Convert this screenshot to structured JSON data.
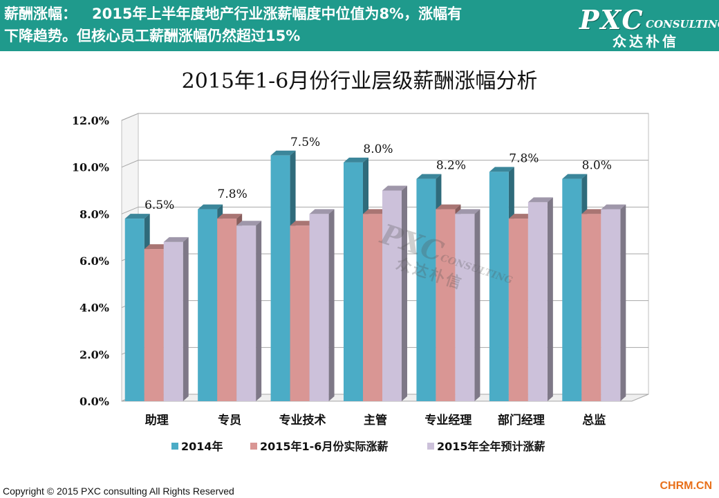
{
  "header": {
    "lead": "薪酬涨幅：",
    "line1": "2015年上半年度地产行业涨薪幅度中位值为8%，涨幅有",
    "line2": "下降趋势。但核心员工薪酬涨幅仍然超过15%"
  },
  "logo": {
    "main": "PXC",
    "sub": "CONSULTING",
    "cn": "众达朴信"
  },
  "watermark": {
    "main": "PXC",
    "sub": "CONSULTING",
    "cn": "众达朴信"
  },
  "colors": {
    "header_bg": "#1f9a8c",
    "series_2014": "#4bacc6",
    "series_actual": "#d99694",
    "series_forecast": "#ccc1da"
  },
  "chart_data": {
    "type": "bar",
    "title": "2015年1-6月份行业层级薪酬涨幅分析",
    "categories": [
      "助理",
      "专员",
      "专业技术",
      "主管",
      "专业经理",
      "部门经理",
      "总监"
    ],
    "series": [
      {
        "name": "2014年",
        "values": [
          7.8,
          8.2,
          10.5,
          10.2,
          9.5,
          9.8,
          9.5
        ]
      },
      {
        "name": "2015年1-6月份实际涨薪",
        "values": [
          6.5,
          7.8,
          7.5,
          8.0,
          8.2,
          7.8,
          8.0
        ]
      },
      {
        "name": "2015年全年预计涨薪",
        "values": [
          6.8,
          7.5,
          8.0,
          9.0,
          8.0,
          8.5,
          8.2
        ]
      }
    ],
    "data_labels": [
      "6.5%",
      "7.8%",
      "7.5%",
      "8.0%",
      "8.2%",
      "7.8%",
      "8.0%"
    ],
    "yticks": [
      "0.0%",
      "2.0%",
      "4.0%",
      "6.0%",
      "8.0%",
      "10.0%",
      "12.0%"
    ],
    "ylim": [
      0,
      12
    ],
    "grid": true,
    "legend_position": "bottom",
    "unit": "%"
  },
  "footer": {
    "copyright": "Copyright © 2015 PXC consulting All Rights Reserved",
    "brand": "CHRM.CN"
  }
}
